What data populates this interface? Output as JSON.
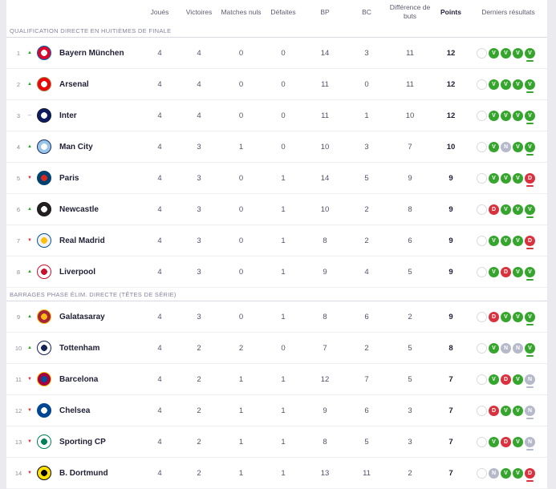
{
  "table": {
    "columns": [
      {
        "label": "Joués"
      },
      {
        "label": "Victoires"
      },
      {
        "label": "Matches nuls"
      },
      {
        "label": "Défaites"
      },
      {
        "label": "BP"
      },
      {
        "label": "BC"
      },
      {
        "label": "Différence de buts"
      },
      {
        "label": "Points"
      },
      {
        "label": "Derniers résultats"
      }
    ],
    "form_legend": {
      "win": "V",
      "draw": "N",
      "loss": "D"
    },
    "colors": {
      "win": "#36a52d",
      "draw": "#b6b9c9",
      "loss": "#d8323f",
      "trend_up": "#2da32a",
      "trend_down": "#d8323f",
      "trend_same": "#9a9aac"
    },
    "sections": [
      {
        "title": "QUALIFICATION DIRECTE EN HUITIÈMES DE FINALE",
        "rows": [
          {
            "pos": 1,
            "trend": "up",
            "team": "Bayern München",
            "crest": {
              "ring": "#0066b2",
              "bg": "#dc052d",
              "dot": "#ffffff"
            },
            "played": 4,
            "wins": 4,
            "draws": 0,
            "losses": 0,
            "gf": 14,
            "ga": 3,
            "gd": 11,
            "points": 12,
            "form": [
              "",
              "V",
              "V",
              "V",
              "V"
            ]
          },
          {
            "pos": 2,
            "trend": "up",
            "team": "Arsenal",
            "crest": {
              "ring": "#9c824a",
              "bg": "#ef0107",
              "dot": "#ffffff"
            },
            "played": 4,
            "wins": 4,
            "draws": 0,
            "losses": 0,
            "gf": 11,
            "ga": 0,
            "gd": 11,
            "points": 12,
            "form": [
              "",
              "V",
              "V",
              "V",
              "V"
            ]
          },
          {
            "pos": 3,
            "trend": "same",
            "team": "Inter",
            "crest": {
              "ring": "#14142b",
              "bg": "#0e1d63",
              "dot": "#ffffff"
            },
            "played": 4,
            "wins": 4,
            "draws": 0,
            "losses": 0,
            "gf": 11,
            "ga": 1,
            "gd": 10,
            "points": 12,
            "form": [
              "",
              "V",
              "V",
              "V",
              "V"
            ]
          },
          {
            "pos": 4,
            "trend": "up",
            "team": "Man City",
            "crest": {
              "ring": "#1c2c5b",
              "bg": "#98c5e9",
              "dot": "#ffffff"
            },
            "played": 4,
            "wins": 3,
            "draws": 1,
            "losses": 0,
            "gf": 10,
            "ga": 3,
            "gd": 7,
            "points": 10,
            "form": [
              "",
              "V",
              "N",
              "V",
              "V"
            ]
          },
          {
            "pos": 5,
            "trend": "down",
            "team": "Paris",
            "crest": {
              "ring": "#004170",
              "bg": "#004170",
              "dot": "#da291c"
            },
            "played": 4,
            "wins": 3,
            "draws": 0,
            "losses": 1,
            "gf": 14,
            "ga": 5,
            "gd": 9,
            "points": 9,
            "form": [
              "",
              "V",
              "V",
              "V",
              "D"
            ]
          },
          {
            "pos": 6,
            "trend": "up",
            "team": "Newcastle",
            "crest": {
              "ring": "#1b1b1b",
              "bg": "#241f20",
              "dot": "#ffffff"
            },
            "played": 4,
            "wins": 3,
            "draws": 0,
            "losses": 1,
            "gf": 10,
            "ga": 2,
            "gd": 8,
            "points": 9,
            "form": [
              "",
              "D",
              "V",
              "V",
              "V"
            ]
          },
          {
            "pos": 7,
            "trend": "down",
            "team": "Real Madrid",
            "crest": {
              "ring": "#00529f",
              "bg": "#f2f2ee",
              "dot": "#febe10"
            },
            "played": 4,
            "wins": 3,
            "draws": 0,
            "losses": 1,
            "gf": 8,
            "ga": 2,
            "gd": 6,
            "points": 9,
            "form": [
              "",
              "V",
              "V",
              "V",
              "D"
            ]
          },
          {
            "pos": 8,
            "trend": "up",
            "team": "Liverpool",
            "crest": {
              "ring": "#c8102e",
              "bg": "#ffffff",
              "dot": "#c8102e"
            },
            "played": 4,
            "wins": 3,
            "draws": 0,
            "losses": 1,
            "gf": 9,
            "ga": 4,
            "gd": 5,
            "points": 9,
            "form": [
              "",
              "V",
              "D",
              "V",
              "V"
            ]
          }
        ]
      },
      {
        "title": "BARRAGES PHASE ÉLIM. DIRECTE (TÊTES DE SÉRIE)",
        "rows": [
          {
            "pos": 9,
            "trend": "up",
            "team": "Galatasaray",
            "crest": {
              "ring": "#fdb912",
              "bg": "#a32638",
              "dot": "#fdb912"
            },
            "played": 4,
            "wins": 3,
            "draws": 0,
            "losses": 1,
            "gf": 8,
            "ga": 6,
            "gd": 2,
            "points": 9,
            "form": [
              "",
              "D",
              "V",
              "V",
              "V"
            ]
          },
          {
            "pos": 10,
            "trend": "up",
            "team": "Tottenham",
            "crest": {
              "ring": "#132257",
              "bg": "#ffffff",
              "dot": "#132257"
            },
            "played": 4,
            "wins": 2,
            "draws": 2,
            "losses": 0,
            "gf": 7,
            "ga": 2,
            "gd": 5,
            "points": 8,
            "form": [
              "",
              "V",
              "N",
              "N",
              "V"
            ]
          },
          {
            "pos": 11,
            "trend": "down",
            "team": "Barcelona",
            "crest": {
              "ring": "#edbb00",
              "bg": "#a50044",
              "dot": "#004d98"
            },
            "played": 4,
            "wins": 2,
            "draws": 1,
            "losses": 1,
            "gf": 12,
            "ga": 7,
            "gd": 5,
            "points": 7,
            "form": [
              "",
              "V",
              "D",
              "V",
              "N"
            ]
          },
          {
            "pos": 12,
            "trend": "down",
            "team": "Chelsea",
            "crest": {
              "ring": "#034694",
              "bg": "#034694",
              "dot": "#ffffff"
            },
            "played": 4,
            "wins": 2,
            "draws": 1,
            "losses": 1,
            "gf": 9,
            "ga": 6,
            "gd": 3,
            "points": 7,
            "form": [
              "",
              "D",
              "V",
              "V",
              "N"
            ]
          },
          {
            "pos": 13,
            "trend": "down",
            "team": "Sporting CP",
            "crest": {
              "ring": "#008057",
              "bg": "#ffffff",
              "dot": "#008057"
            },
            "played": 4,
            "wins": 2,
            "draws": 1,
            "losses": 1,
            "gf": 8,
            "ga": 5,
            "gd": 3,
            "points": 7,
            "form": [
              "",
              "V",
              "D",
              "V",
              "N"
            ]
          },
          {
            "pos": 14,
            "trend": "down",
            "team": "B. Dortmund",
            "crest": {
              "ring": "#000000",
              "bg": "#fde100",
              "dot": "#000000"
            },
            "played": 4,
            "wins": 2,
            "draws": 1,
            "losses": 1,
            "gf": 13,
            "ga": 11,
            "gd": 2,
            "points": 7,
            "form": [
              "",
              "N",
              "V",
              "V",
              "D"
            ]
          }
        ]
      }
    ]
  }
}
